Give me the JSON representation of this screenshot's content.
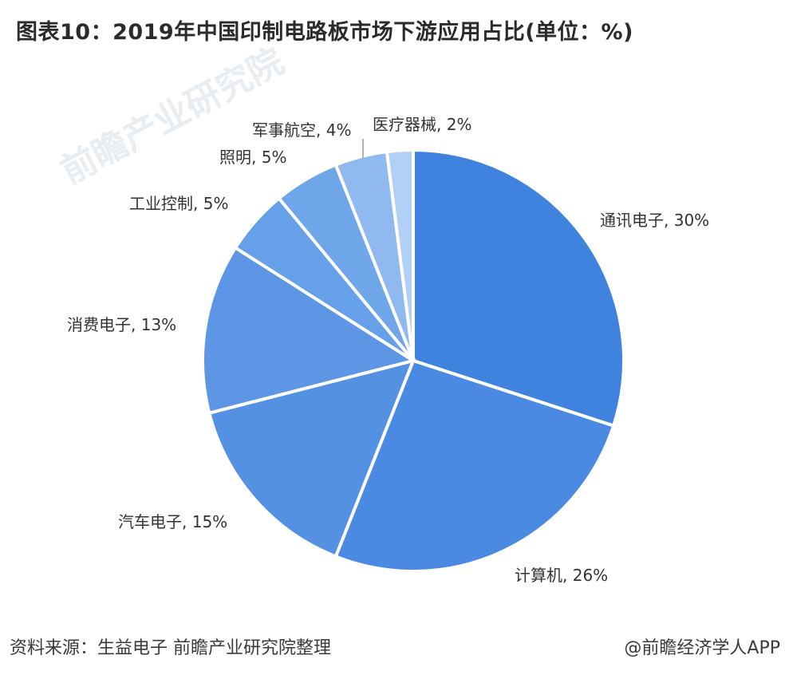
{
  "title": "图表10：2019年中国印制电路板市场下游应用占比(单位：%)",
  "watermark": {
    "text": "前瞻产业研究院"
  },
  "footer": {
    "source": "资料来源：生益电子 前瞻产业研究院整理",
    "brand": "@前瞻经济学人APP"
  },
  "chart_data": {
    "type": "pie",
    "title": "图表10：2019年中国印制电路板市场下游应用占比(单位：%)",
    "unit": "%",
    "slices": [
      {
        "label": "通讯电子",
        "value": 30,
        "display": "通讯电子, 30%",
        "color": "#3f83df"
      },
      {
        "label": "计算机",
        "value": 26,
        "display": "计算机, 26%",
        "color": "#4a8ae2"
      },
      {
        "label": "汽车电子",
        "value": 15,
        "display": "汽车电子, 15%",
        "color": "#5591e3"
      },
      {
        "label": "消费电子",
        "value": 13,
        "display": "消费电子, 13%",
        "color": "#5c96e4"
      },
      {
        "label": "工业控制",
        "value": 5,
        "display": "工业控制, 5%",
        "color": "#66a0e8"
      },
      {
        "label": "照明",
        "value": 5,
        "display": "照明, 5%",
        "color": "#6fa6ea"
      },
      {
        "label": "军事航空",
        "value": 4,
        "display": "军事航空, 4%",
        "color": "#8fb9ef"
      },
      {
        "label": "医疗器械",
        "value": 2,
        "display": "医疗器械, 2%",
        "color": "#b2cff5"
      }
    ]
  }
}
